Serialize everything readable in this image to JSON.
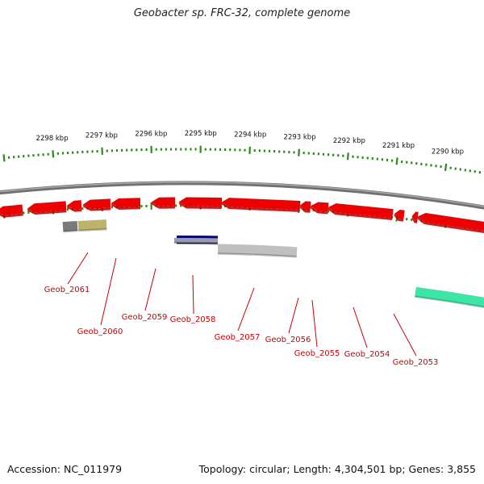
{
  "title": "Geobacter sp. FRC-32, complete genome",
  "footer": {
    "accession": "Accession: NC_011979",
    "topology": "Topology: circular; Length: 4,304,501 bp; Genes: 3,855"
  },
  "scale": {
    "ticks": [
      "2298 kbp",
      "2297 kbp",
      "2296 kbp",
      "2295 kbp",
      "2294 kbp",
      "2293 kbp",
      "2292 kbp",
      "2291 kbp",
      "2290 kbp"
    ]
  },
  "genes": [
    "Geob_2061",
    "Geob_2060",
    "Geob_2059",
    "Geob_2058",
    "Geob_2057",
    "Geob_2056",
    "Geob_2055",
    "Geob_2054",
    "Geob_2053"
  ],
  "colors": {
    "gene": "#ee0000",
    "gene_side": "#b00000",
    "label": "#cc0000",
    "backbone": "#888888",
    "tick": "#2a8a1a",
    "cog_gray": "#7a7a7a",
    "cog_khaki": "#bdb46a",
    "cog_navy": "#0a0a6e",
    "cog_silver": "#c0c0c0",
    "cog_mint": "#3ce6a6"
  }
}
